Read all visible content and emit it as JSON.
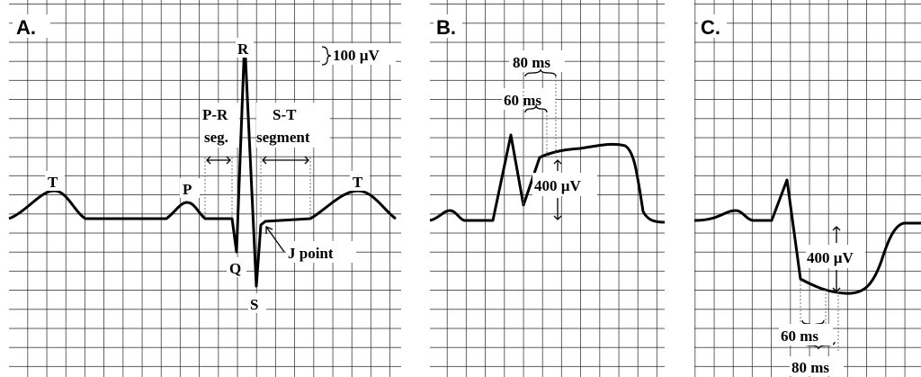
{
  "panels": [
    {
      "label": "A.",
      "r": "R",
      "amplitude": "100 µV",
      "pr_1": "P-R",
      "pr_2": "seg.",
      "st_1": "S-T",
      "st_2": "segment",
      "t_left": "T",
      "p": "P",
      "t_right": "T",
      "q": "Q",
      "s": "S",
      "j_point": "J point"
    },
    {
      "label": "B.",
      "ms_80": "80 ms",
      "ms_60": "60 ms",
      "amplitude": "400 µV"
    },
    {
      "label": "C.",
      "amplitude": "400 µV",
      "ms_60": "60 ms",
      "ms_80": "80 ms"
    }
  ]
}
